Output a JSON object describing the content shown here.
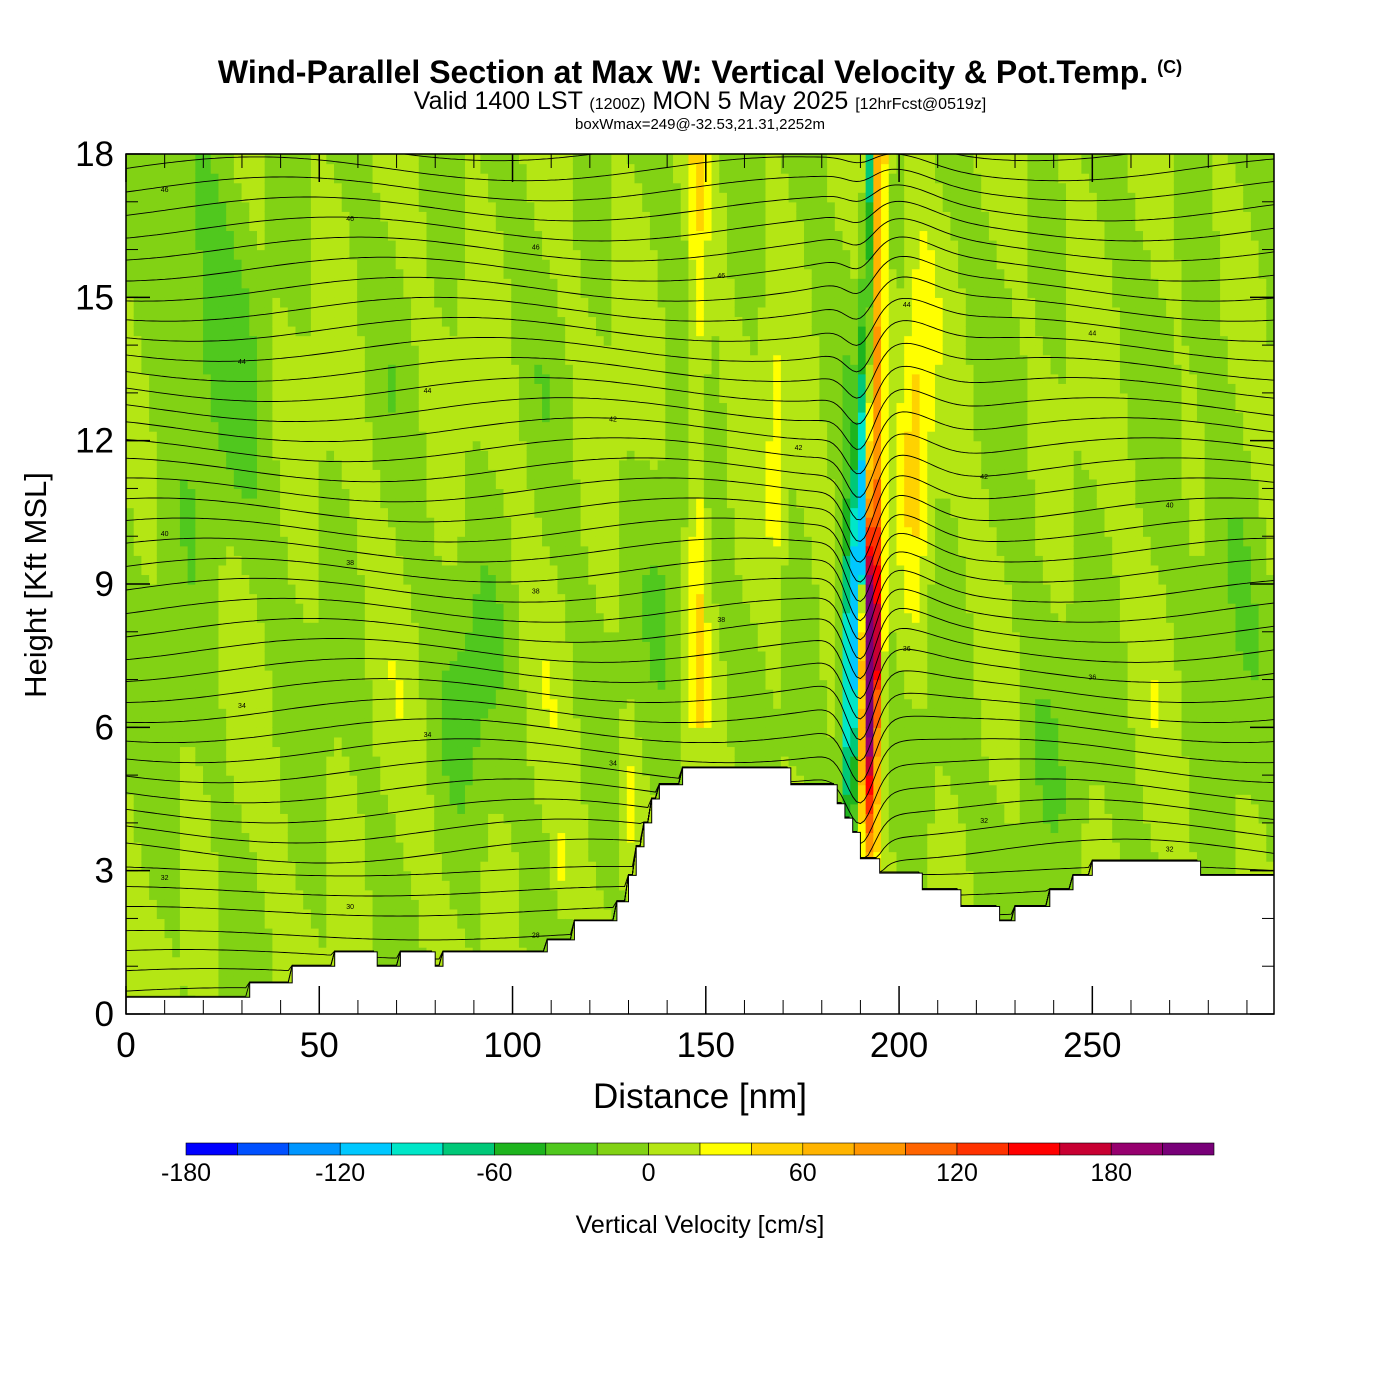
{
  "header": {
    "title": "Wind-Parallel Section at Max W: Vertical Velocity & Pot.Temp.",
    "copyright": "(C)",
    "subtitle_main": "Valid 1400 LST",
    "subtitle_utc": "(1200Z)",
    "subtitle_date": "MON 5 May 2025",
    "subtitle_fcst": "[12hrFcst@0519z]",
    "box_info": "boxWmax=249@-32.53,21.31,2252m"
  },
  "chart_data": {
    "type": "heatmap",
    "xlabel": "Distance [nm]",
    "ylabel": "Height [Kft MSL]",
    "xlim": [
      0,
      297
    ],
    "ylim": [
      0,
      18
    ],
    "xticks": [
      "0",
      "50",
      "100",
      "150",
      "200",
      "250"
    ],
    "yticks": [
      "0",
      "3",
      "6",
      "9",
      "12",
      "15",
      "18"
    ],
    "terrain_kft": [
      [
        0,
        0.35
      ],
      [
        32,
        0.35
      ],
      [
        32,
        0.65
      ],
      [
        43,
        0.65
      ],
      [
        43,
        1.0
      ],
      [
        54,
        1.0
      ],
      [
        54,
        1.3
      ],
      [
        65,
        1.3
      ],
      [
        65,
        1.0
      ],
      [
        71,
        1.0
      ],
      [
        71,
        1.3
      ],
      [
        80,
        1.3
      ],
      [
        80,
        1.0
      ],
      [
        82,
        1.0
      ],
      [
        82,
        1.3
      ],
      [
        109,
        1.3
      ],
      [
        109,
        1.55
      ],
      [
        116,
        1.55
      ],
      [
        116,
        1.95
      ],
      [
        127,
        1.95
      ],
      [
        127,
        2.35
      ],
      [
        130,
        2.35
      ],
      [
        130,
        2.9
      ],
      [
        132,
        2.9
      ],
      [
        132,
        3.5
      ],
      [
        134,
        3.5
      ],
      [
        134,
        4.0
      ],
      [
        136,
        4.0
      ],
      [
        136,
        4.5
      ],
      [
        138,
        4.5
      ],
      [
        138,
        4.8
      ],
      [
        144,
        4.8
      ],
      [
        144,
        5.15
      ],
      [
        172,
        5.15
      ],
      [
        172,
        4.8
      ],
      [
        184,
        4.8
      ],
      [
        184,
        4.4
      ],
      [
        186,
        4.4
      ],
      [
        186,
        4.1
      ],
      [
        188,
        4.1
      ],
      [
        188,
        3.8
      ],
      [
        190,
        3.8
      ],
      [
        190,
        3.25
      ],
      [
        195,
        3.25
      ],
      [
        195,
        2.95
      ],
      [
        206,
        2.95
      ],
      [
        206,
        2.6
      ],
      [
        216,
        2.6
      ],
      [
        216,
        2.25
      ],
      [
        226,
        2.25
      ],
      [
        226,
        1.95
      ],
      [
        230,
        1.95
      ],
      [
        230,
        2.25
      ],
      [
        239,
        2.25
      ],
      [
        239,
        2.6
      ],
      [
        245,
        2.6
      ],
      [
        245,
        2.9
      ],
      [
        250,
        2.9
      ],
      [
        250,
        3.2
      ],
      [
        278,
        3.2
      ],
      [
        278,
        2.9
      ],
      [
        297,
        2.9
      ]
    ],
    "colorbar": {
      "label": "Vertical Velocity [cm/s]",
      "ticks": [
        "-180",
        "-120",
        "-60",
        "0",
        "60",
        "120",
        "180"
      ],
      "levels": [
        -180,
        -160,
        -140,
        -120,
        -100,
        -80,
        -60,
        -40,
        -20,
        0,
        20,
        40,
        60,
        80,
        100,
        120,
        140,
        160,
        180,
        200,
        220
      ],
      "colors": [
        "#0000ff",
        "#0050ff",
        "#0096ff",
        "#00c8ff",
        "#00e6c8",
        "#00c878",
        "#1eb41e",
        "#50c81e",
        "#82d214",
        "#b4e614",
        "#ffff00",
        "#ffd200",
        "#ffb400",
        "#ff9600",
        "#ff6400",
        "#ff3200",
        "#ff0000",
        "#c80032",
        "#96006e",
        "#780078"
      ]
    },
    "updraft_cm_s": 249,
    "theta_labels": [
      "46",
      "46",
      "46",
      "46",
      "44",
      "44",
      "44",
      "44",
      "42",
      "42",
      "42",
      "40",
      "40",
      "38",
      "38",
      "38",
      "36",
      "36",
      "34",
      "34",
      "34",
      "34",
      "32",
      "32",
      "32",
      "30",
      "28",
      "26"
    ]
  }
}
